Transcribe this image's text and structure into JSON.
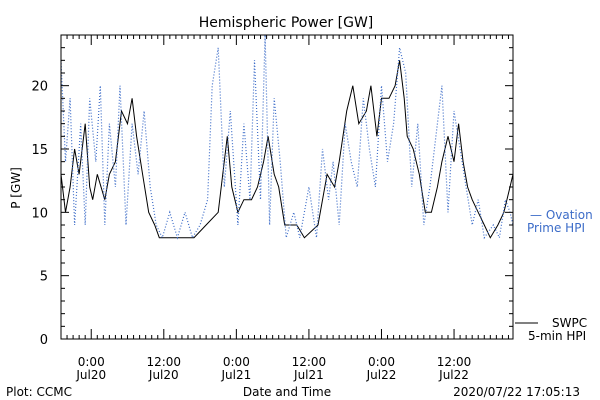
{
  "chart_data": {
    "type": "line",
    "title": "Hemispheric Power [GW]",
    "ylabel": "P [GW]",
    "xlabel": "Date and Time",
    "ylim": [
      0,
      24
    ],
    "yticks": [
      0,
      5,
      10,
      15,
      20
    ],
    "xlim": [
      "2020-07-19T19:00",
      "2020-07-22T21:45"
    ],
    "xticks": [
      {
        "time": "2020-07-20T00:00",
        "label1": "0:00",
        "label2": "Jul20"
      },
      {
        "time": "2020-07-20T12:00",
        "label1": "12:00",
        "label2": "Jul20"
      },
      {
        "time": "2020-07-21T00:00",
        "label1": "0:00",
        "label2": "Jul21"
      },
      {
        "time": "2020-07-21T12:00",
        "label1": "12:00",
        "label2": "Jul21"
      },
      {
        "time": "2020-07-22T00:00",
        "label1": "0:00",
        "label2": "Jul22"
      },
      {
        "time": "2020-07-22T12:00",
        "label1": "12:00",
        "label2": "Jul22"
      }
    ],
    "series": [
      {
        "name": "SWPC 5-min HPI",
        "style": "solid",
        "color": "#000000",
        "points": [
          [
            "2020-07-19T19:00",
            13
          ],
          [
            "2020-07-19T19:45",
            10
          ],
          [
            "2020-07-19T20:30",
            12
          ],
          [
            "2020-07-19T21:15",
            15
          ],
          [
            "2020-07-19T22:00",
            13
          ],
          [
            "2020-07-19T23:00",
            17
          ],
          [
            "2020-07-19T23:45",
            12
          ],
          [
            "2020-07-20T00:15",
            11
          ],
          [
            "2020-07-20T01:00",
            13
          ],
          [
            "2020-07-20T02:15",
            11
          ],
          [
            "2020-07-20T03:00",
            13
          ],
          [
            "2020-07-20T04:00",
            14
          ],
          [
            "2020-07-20T05:00",
            18
          ],
          [
            "2020-07-20T06:00",
            17
          ],
          [
            "2020-07-20T06:45",
            19
          ],
          [
            "2020-07-20T07:30",
            16
          ],
          [
            "2020-07-20T08:30",
            13
          ],
          [
            "2020-07-20T09:30",
            10
          ],
          [
            "2020-07-20T10:30",
            9
          ],
          [
            "2020-07-20T11:15",
            8
          ],
          [
            "2020-07-20T13:30",
            8
          ],
          [
            "2020-07-20T17:00",
            8
          ],
          [
            "2020-07-20T19:00",
            9
          ],
          [
            "2020-07-20T21:00",
            10
          ],
          [
            "2020-07-20T22:30",
            16
          ],
          [
            "2020-07-20T23:15",
            12
          ],
          [
            "2020-07-21T00:15",
            10
          ],
          [
            "2020-07-21T01:15",
            11
          ],
          [
            "2020-07-21T02:30",
            11
          ],
          [
            "2020-07-21T03:30",
            12
          ],
          [
            "2020-07-21T04:30",
            14
          ],
          [
            "2020-07-21T05:15",
            16
          ],
          [
            "2020-07-21T06:15",
            13
          ],
          [
            "2020-07-21T07:00",
            12
          ],
          [
            "2020-07-21T08:00",
            9
          ],
          [
            "2020-07-21T10:00",
            9
          ],
          [
            "2020-07-21T11:15",
            8
          ],
          [
            "2020-07-21T13:30",
            9
          ],
          [
            "2020-07-21T15:00",
            13
          ],
          [
            "2020-07-21T16:15",
            12
          ],
          [
            "2020-07-21T17:00",
            14
          ],
          [
            "2020-07-21T18:15",
            18
          ],
          [
            "2020-07-21T19:15",
            20
          ],
          [
            "2020-07-21T20:15",
            17
          ],
          [
            "2020-07-21T21:30",
            18
          ],
          [
            "2020-07-21T22:15",
            20
          ],
          [
            "2020-07-21T23:15",
            16
          ],
          [
            "2020-07-22T00:00",
            19
          ],
          [
            "2020-07-22T01:15",
            19
          ],
          [
            "2020-07-22T02:15",
            20
          ],
          [
            "2020-07-22T03:00",
            22
          ],
          [
            "2020-07-22T03:45",
            19
          ],
          [
            "2020-07-22T04:15",
            16
          ],
          [
            "2020-07-22T05:15",
            15
          ],
          [
            "2020-07-22T06:15",
            13
          ],
          [
            "2020-07-22T07:15",
            10
          ],
          [
            "2020-07-22T08:15",
            10
          ],
          [
            "2020-07-22T09:15",
            12
          ],
          [
            "2020-07-22T10:00",
            14
          ],
          [
            "2020-07-22T11:00",
            16
          ],
          [
            "2020-07-22T12:00",
            14
          ],
          [
            "2020-07-22T12:45",
            17
          ],
          [
            "2020-07-22T13:30",
            14
          ],
          [
            "2020-07-22T14:15",
            12
          ],
          [
            "2020-07-22T15:00",
            11
          ],
          [
            "2020-07-22T16:00",
            10
          ],
          [
            "2020-07-22T17:00",
            9
          ],
          [
            "2020-07-22T18:00",
            8
          ],
          [
            "2020-07-22T19:15",
            9
          ],
          [
            "2020-07-22T20:15",
            10
          ],
          [
            "2020-07-22T21:15",
            12
          ],
          [
            "2020-07-22T21:45",
            13
          ]
        ]
      },
      {
        "name": "Ovation Prime HPI",
        "style": "dotted",
        "color": "#3c6cc8",
        "points": [
          [
            "2020-07-19T19:00",
            22
          ],
          [
            "2020-07-19T19:45",
            14
          ],
          [
            "2020-07-19T20:30",
            19
          ],
          [
            "2020-07-19T21:15",
            9
          ],
          [
            "2020-07-19T22:15",
            17
          ],
          [
            "2020-07-19T23:00",
            9
          ],
          [
            "2020-07-19T23:45",
            19
          ],
          [
            "2020-07-20T00:45",
            14
          ],
          [
            "2020-07-20T01:30",
            20
          ],
          [
            "2020-07-20T02:15",
            9
          ],
          [
            "2020-07-20T03:00",
            17
          ],
          [
            "2020-07-20T04:00",
            12
          ],
          [
            "2020-07-20T04:45",
            20
          ],
          [
            "2020-07-20T05:45",
            9
          ],
          [
            "2020-07-20T06:45",
            17
          ],
          [
            "2020-07-20T07:45",
            13
          ],
          [
            "2020-07-20T08:45",
            18
          ],
          [
            "2020-07-20T09:45",
            12
          ],
          [
            "2020-07-20T10:45",
            9
          ],
          [
            "2020-07-20T11:45",
            8
          ],
          [
            "2020-07-20T13:00",
            10
          ],
          [
            "2020-07-20T14:15",
            8
          ],
          [
            "2020-07-20T15:30",
            10
          ],
          [
            "2020-07-20T16:45",
            8
          ],
          [
            "2020-07-20T18:00",
            9
          ],
          [
            "2020-07-20T19:15",
            11
          ],
          [
            "2020-07-20T20:00",
            20
          ],
          [
            "2020-07-20T21:00",
            23
          ],
          [
            "2020-07-20T22:00",
            12
          ],
          [
            "2020-07-20T23:00",
            18
          ],
          [
            "2020-07-21T00:15",
            9
          ],
          [
            "2020-07-21T01:15",
            17
          ],
          [
            "2020-07-21T02:15",
            11
          ],
          [
            "2020-07-21T03:00",
            22
          ],
          [
            "2020-07-21T04:00",
            11
          ],
          [
            "2020-07-21T04:45",
            24
          ],
          [
            "2020-07-21T05:30",
            9
          ],
          [
            "2020-07-21T06:15",
            19
          ],
          [
            "2020-07-21T07:15",
            14
          ],
          [
            "2020-07-21T08:15",
            8
          ],
          [
            "2020-07-21T09:30",
            10
          ],
          [
            "2020-07-21T10:30",
            8
          ],
          [
            "2020-07-21T12:00",
            12
          ],
          [
            "2020-07-21T13:15",
            8
          ],
          [
            "2020-07-21T14:15",
            15
          ],
          [
            "2020-07-21T15:15",
            11
          ],
          [
            "2020-07-21T16:00",
            14
          ],
          [
            "2020-07-21T17:00",
            9
          ],
          [
            "2020-07-21T18:00",
            17
          ],
          [
            "2020-07-21T19:00",
            14
          ],
          [
            "2020-07-21T20:00",
            12
          ],
          [
            "2020-07-21T21:00",
            19
          ],
          [
            "2020-07-21T22:00",
            15
          ],
          [
            "2020-07-21T23:00",
            12
          ],
          [
            "2020-07-22T00:00",
            20
          ],
          [
            "2020-07-22T01:00",
            14
          ],
          [
            "2020-07-22T02:00",
            17
          ],
          [
            "2020-07-22T03:00",
            23
          ],
          [
            "2020-07-22T04:00",
            21
          ],
          [
            "2020-07-22T05:00",
            12
          ],
          [
            "2020-07-22T06:00",
            17
          ],
          [
            "2020-07-22T07:00",
            9
          ],
          [
            "2020-07-22T08:00",
            12
          ],
          [
            "2020-07-22T09:00",
            16
          ],
          [
            "2020-07-22T10:00",
            20
          ],
          [
            "2020-07-22T11:00",
            10
          ],
          [
            "2020-07-22T12:00",
            18
          ],
          [
            "2020-07-22T13:00",
            15
          ],
          [
            "2020-07-22T14:00",
            12
          ],
          [
            "2020-07-22T15:00",
            9
          ],
          [
            "2020-07-22T16:00",
            11
          ],
          [
            "2020-07-22T17:00",
            8
          ],
          [
            "2020-07-22T18:30",
            9
          ],
          [
            "2020-07-22T19:30",
            8
          ],
          [
            "2020-07-22T20:30",
            11
          ],
          [
            "2020-07-22T21:15",
            10
          ],
          [
            "2020-07-22T21:45",
            9
          ]
        ]
      }
    ],
    "legend": {
      "ovation_line1": "— Ovation",
      "ovation_line2": "Prime HPI",
      "swpc_line1": "SWPC",
      "swpc_line2": "5-min HPI"
    },
    "footer": {
      "left": "Plot: CCMC",
      "center": "Date and Time",
      "right": "2020/07/22 17:05:13"
    }
  }
}
